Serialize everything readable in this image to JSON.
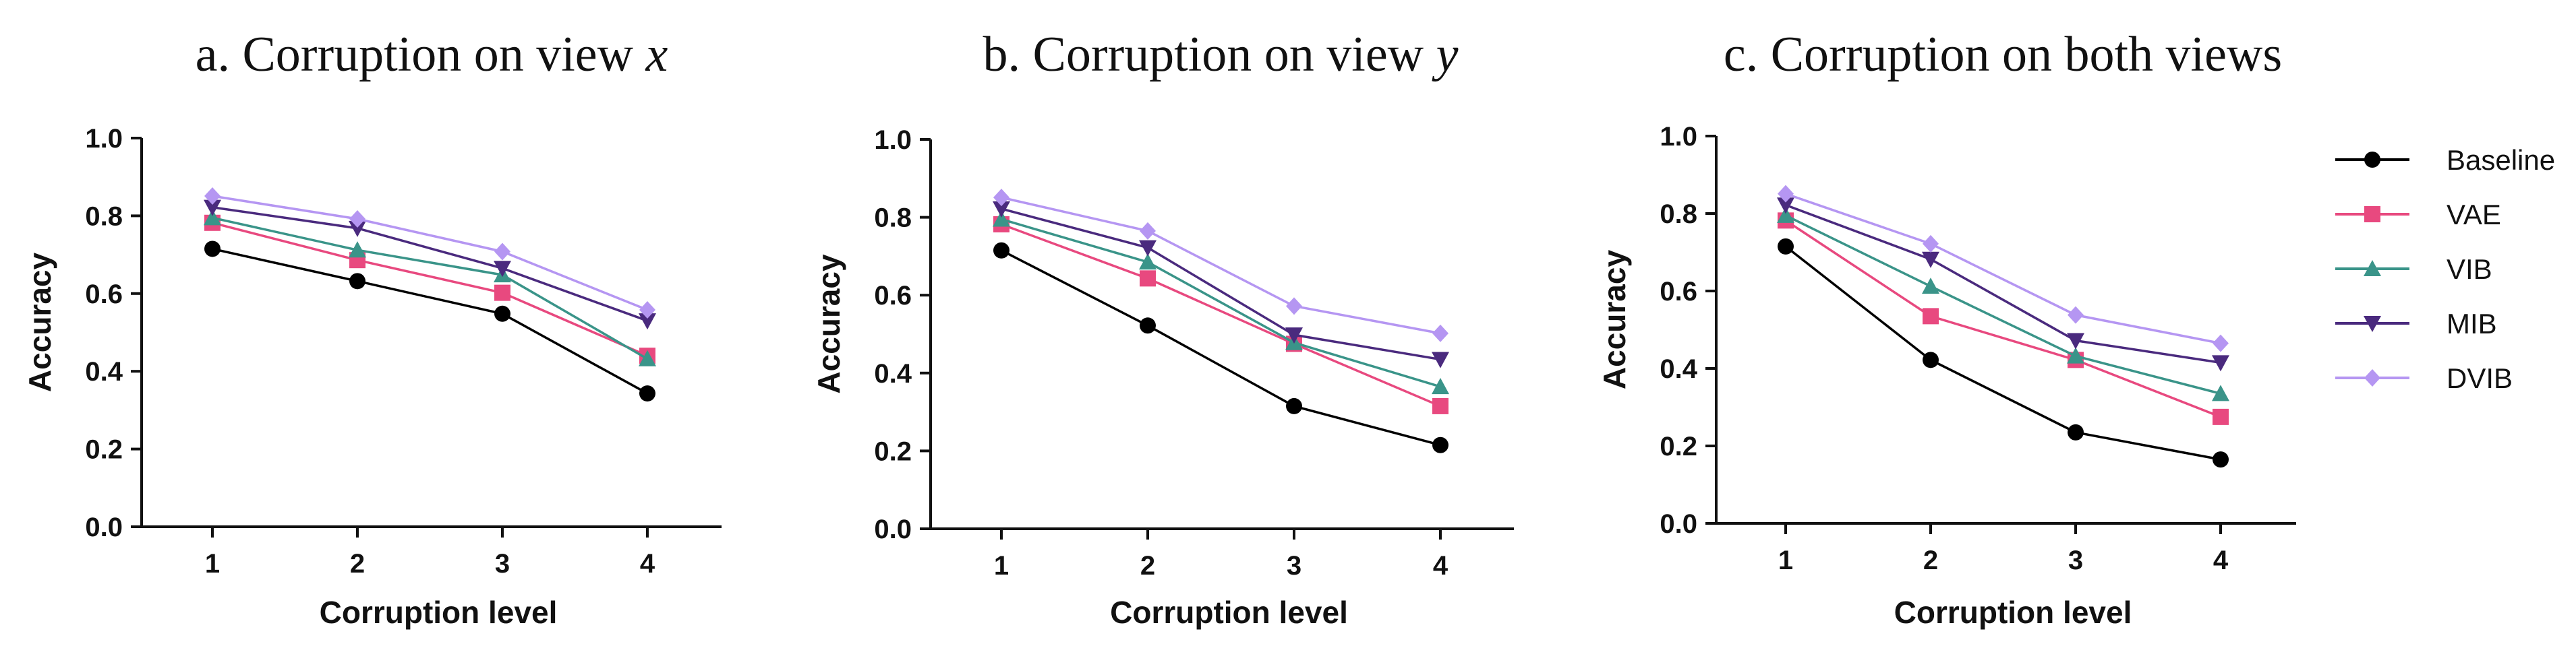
{
  "chart_data": [
    {
      "type": "line",
      "title": "a. Corruption on view",
      "title_var": "x",
      "xlabel": "Corruption level",
      "ylabel": "Accuracy",
      "x": [
        1,
        2,
        3,
        4
      ],
      "ylim": [
        0.0,
        1.0
      ],
      "yticks": [
        "0.0",
        "0.2",
        "0.4",
        "0.6",
        "0.8",
        "1.0"
      ],
      "xticks": [
        "1",
        "2",
        "3",
        "4"
      ],
      "series": [
        {
          "name": "Baseline",
          "values": [
            0.715,
            0.632,
            0.548,
            0.343
          ]
        },
        {
          "name": "VAE",
          "values": [
            0.782,
            0.686,
            0.602,
            0.44
          ]
        },
        {
          "name": "VIB",
          "values": [
            0.795,
            0.712,
            0.648,
            0.432
          ]
        },
        {
          "name": "MIB",
          "values": [
            0.822,
            0.768,
            0.665,
            0.53
          ]
        },
        {
          "name": "DVIB",
          "values": [
            0.851,
            0.792,
            0.708,
            0.558
          ]
        }
      ]
    },
    {
      "type": "line",
      "title": "b. Corruption on view",
      "title_var": "y",
      "xlabel": "Corruption level",
      "ylabel": "Accuracy",
      "x": [
        1,
        2,
        3,
        4
      ],
      "ylim": [
        0.0,
        1.0
      ],
      "yticks": [
        "0.0",
        "0.2",
        "0.4",
        "0.6",
        "0.8",
        "1.0"
      ],
      "xticks": [
        "1",
        "2",
        "3",
        "4"
      ],
      "series": [
        {
          "name": "Baseline",
          "values": [
            0.715,
            0.522,
            0.315,
            0.215
          ]
        },
        {
          "name": "VAE",
          "values": [
            0.782,
            0.643,
            0.475,
            0.315
          ]
        },
        {
          "name": "VIB",
          "values": [
            0.795,
            0.685,
            0.478,
            0.365
          ]
        },
        {
          "name": "MIB",
          "values": [
            0.822,
            0.722,
            0.498,
            0.435
          ]
        },
        {
          "name": "DVIB",
          "values": [
            0.851,
            0.765,
            0.572,
            0.502
          ]
        }
      ]
    },
    {
      "type": "line",
      "title": "c. Corruption on both views",
      "title_var": "",
      "xlabel": "Corruption level",
      "ylabel": "Accuracy",
      "x": [
        1,
        2,
        3,
        4
      ],
      "ylim": [
        0.0,
        1.0
      ],
      "yticks": [
        "0.0",
        "0.2",
        "0.4",
        "0.6",
        "0.8",
        "1.0"
      ],
      "xticks": [
        "1",
        "2",
        "3",
        "4"
      ],
      "series": [
        {
          "name": "Baseline",
          "values": [
            0.715,
            0.422,
            0.235,
            0.165
          ]
        },
        {
          "name": "VAE",
          "values": [
            0.782,
            0.535,
            0.422,
            0.275
          ]
        },
        {
          "name": "VIB",
          "values": [
            0.795,
            0.612,
            0.432,
            0.335
          ]
        },
        {
          "name": "MIB",
          "values": [
            0.822,
            0.682,
            0.472,
            0.415
          ]
        },
        {
          "name": "DVIB",
          "values": [
            0.851,
            0.722,
            0.538,
            0.465
          ]
        }
      ]
    }
  ],
  "legend": [
    {
      "name": "Baseline",
      "color": "#000000",
      "marker": "circle"
    },
    {
      "name": "VAE",
      "color": "#e8497f",
      "marker": "square"
    },
    {
      "name": "VIB",
      "color": "#3a9489",
      "marker": "triangle-up"
    },
    {
      "name": "MIB",
      "color": "#4a2a7e",
      "marker": "triangle-down"
    },
    {
      "name": "DVIB",
      "color": "#b596f2",
      "marker": "diamond"
    }
  ]
}
